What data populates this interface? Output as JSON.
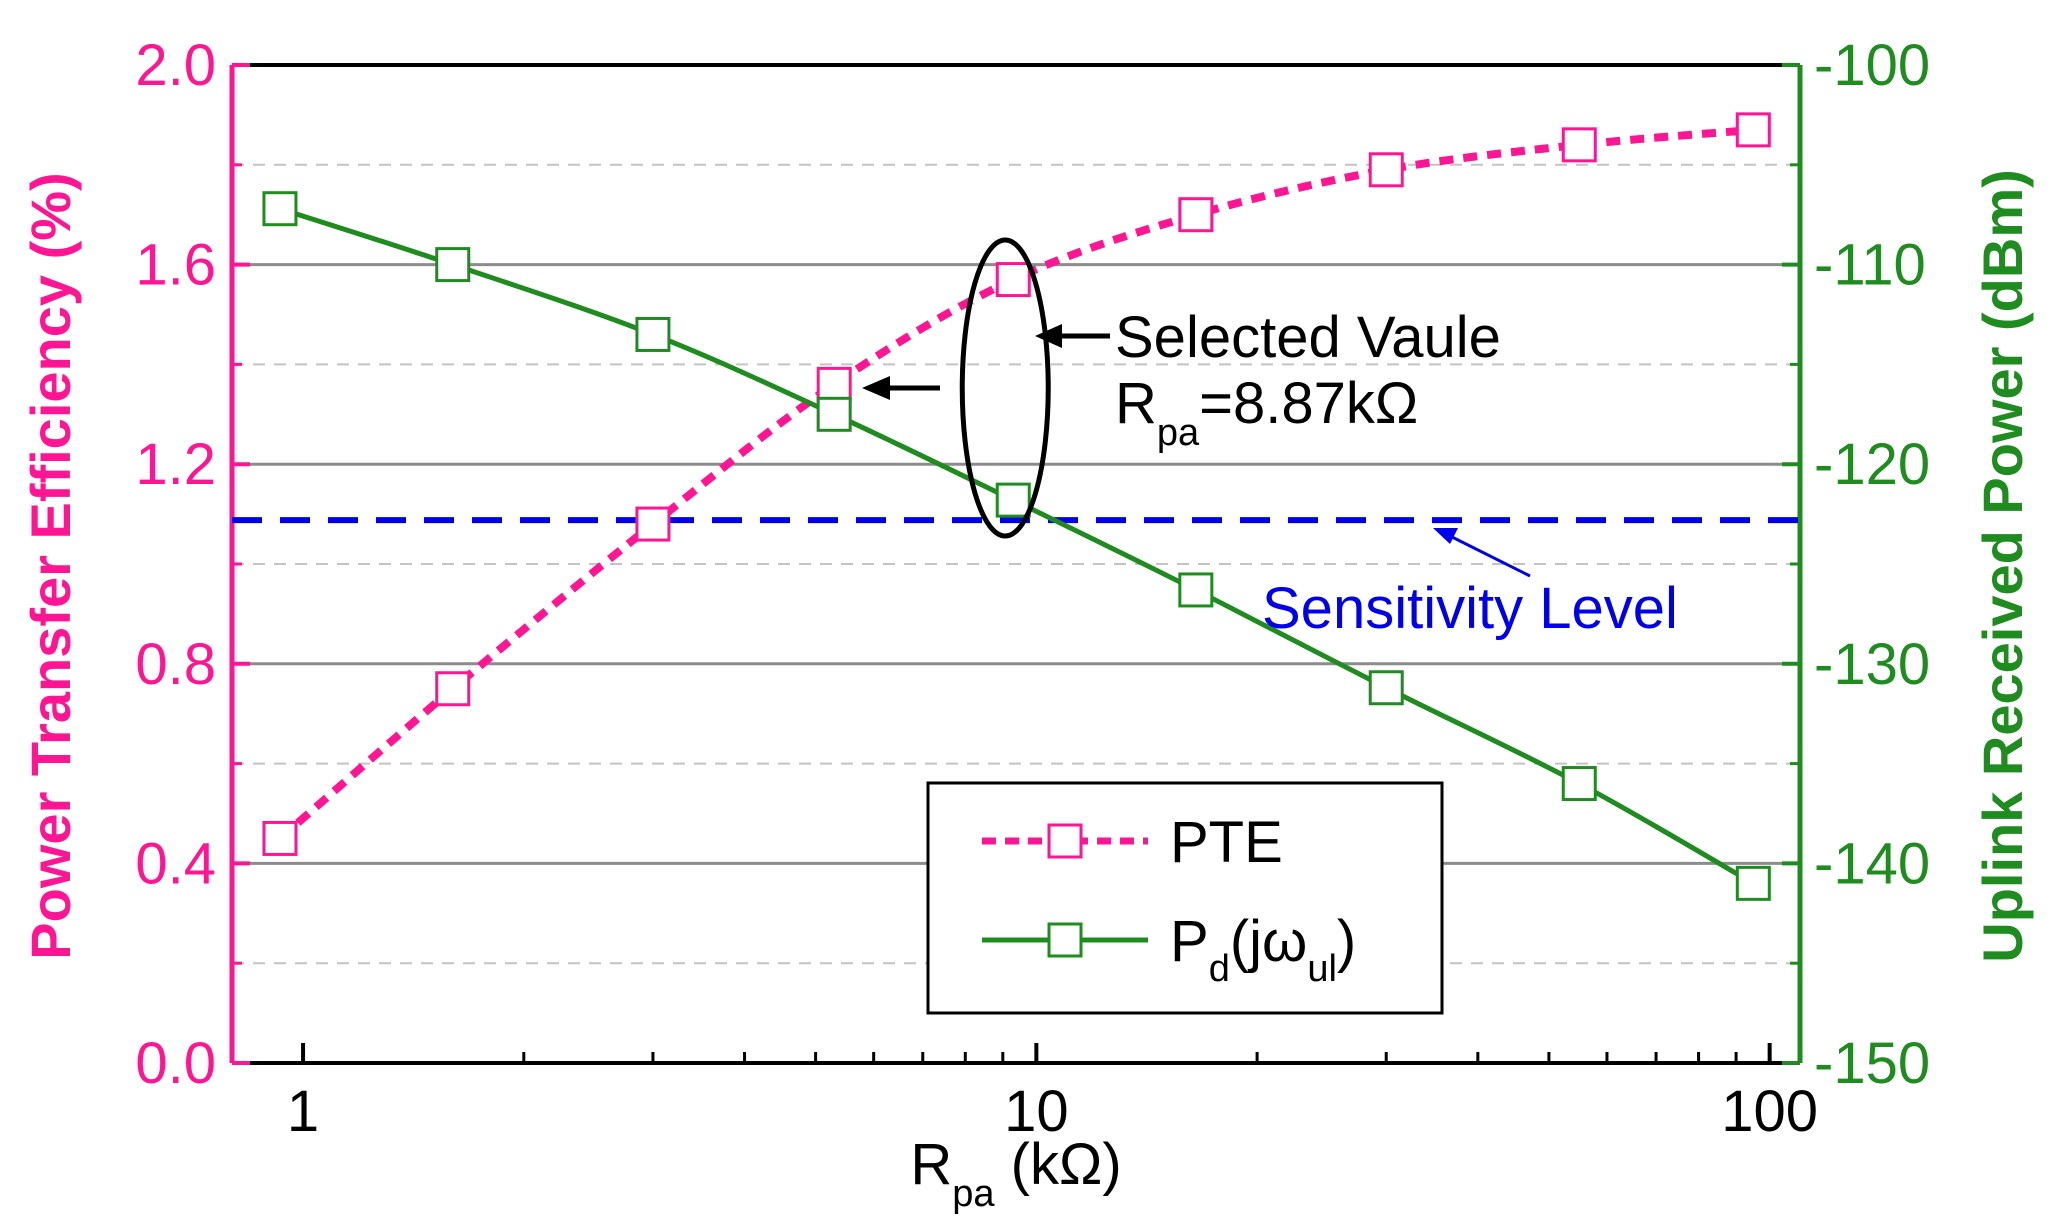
{
  "chart_data": {
    "type": "line",
    "x_scale": "log",
    "xlim": [
      0.8,
      110
    ],
    "xlabel": {
      "main": "R",
      "sub": "pa",
      "rest": " (kΩ)"
    },
    "x_ticks": [
      {
        "value": 1,
        "label": "1"
      },
      {
        "value": 10,
        "label": "10"
      },
      {
        "value": 100,
        "label": "100"
      }
    ],
    "y_left": {
      "label": "Power Transfer Efficiency (%)",
      "range": [
        0,
        2.0
      ],
      "color": "#ff1493",
      "ticks": [
        {
          "value": 0.0,
          "label": "0.0"
        },
        {
          "value": 0.4,
          "label": "0.4"
        },
        {
          "value": 0.8,
          "label": "0.8"
        },
        {
          "value": 1.2,
          "label": "1.2"
        },
        {
          "value": 1.6,
          "label": "1.6"
        },
        {
          "value": 2.0,
          "label": "2.0"
        }
      ]
    },
    "y_right": {
      "label": "Uplink Received Power (dBm)",
      "range": [
        -150,
        -100
      ],
      "color": "#1e8c1e",
      "ticks": [
        {
          "value": -150,
          "label": "-150"
        },
        {
          "value": -140,
          "label": "-140"
        },
        {
          "value": -130,
          "label": "-130"
        },
        {
          "value": -120,
          "label": "-120"
        },
        {
          "value": -110,
          "label": "-110"
        },
        {
          "value": -100,
          "label": "-100"
        }
      ]
    },
    "series": [
      {
        "name": "PTE",
        "axis": "left",
        "color": "#ff1493",
        "line": "dotted",
        "x": [
          0.93,
          1.6,
          3.0,
          5.3,
          9.3,
          16.5,
          30,
          55,
          95
        ],
        "values": [
          0.45,
          0.75,
          1.08,
          1.36,
          1.57,
          1.7,
          1.79,
          1.84,
          1.87
        ]
      },
      {
        "name": "Pd(jωul)",
        "axis": "right",
        "color": "#1e8c1e",
        "line": "solid",
        "x": [
          0.93,
          1.6,
          3.0,
          5.3,
          9.3,
          16.5,
          30,
          55,
          95
        ],
        "values": [
          -107.2,
          -110.0,
          -113.5,
          -117.5,
          -121.8,
          -126.3,
          -131.2,
          -136.0,
          -141.0
        ]
      }
    ],
    "reference_line": {
      "axis": "right",
      "value": -122.8,
      "color": "#0000ee",
      "label": "Sensitivity Level"
    },
    "grid": {
      "major": true,
      "minor_dashed": true
    },
    "annotations": {
      "selected_title": "Selected Vaule",
      "selected_value": {
        "main": "R",
        "sub": "pa",
        "rest": "=8.87kΩ"
      },
      "selected_x": 9.3
    },
    "legend": {
      "position": "bottom-center",
      "entries": [
        {
          "main": "PTE"
        },
        {
          "main": "P",
          "sub": "d",
          "mid": "(jω",
          "sub2": "ul",
          "end": ")"
        }
      ]
    }
  }
}
